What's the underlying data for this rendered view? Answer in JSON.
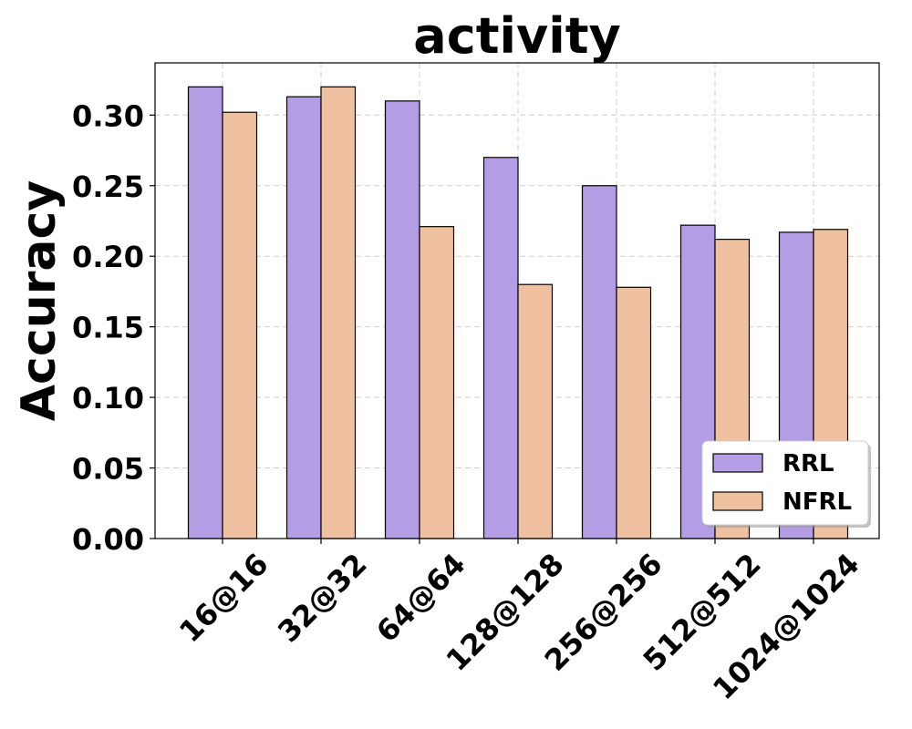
{
  "chart_data": {
    "type": "bar",
    "title": "activity",
    "xlabel": "",
    "ylabel": "Accuracy",
    "categories": [
      "16@16",
      "32@32",
      "64@64",
      "128@128",
      "256@256",
      "512@512",
      "1024@1024"
    ],
    "series": [
      {
        "name": "RRL",
        "color": "#b39ee5",
        "values": [
          0.32,
          0.313,
          0.31,
          0.27,
          0.25,
          0.222,
          0.217
        ]
      },
      {
        "name": "NFRL",
        "color": "#f0c1a0",
        "values": [
          0.302,
          0.32,
          0.221,
          0.18,
          0.178,
          0.212,
          0.219
        ]
      }
    ],
    "ylim": [
      0,
      0.337
    ],
    "yticks": [
      "0.00",
      "0.05",
      "0.10",
      "0.15",
      "0.20",
      "0.25",
      "0.30"
    ],
    "grid": true,
    "legend_position": "lower-right"
  }
}
